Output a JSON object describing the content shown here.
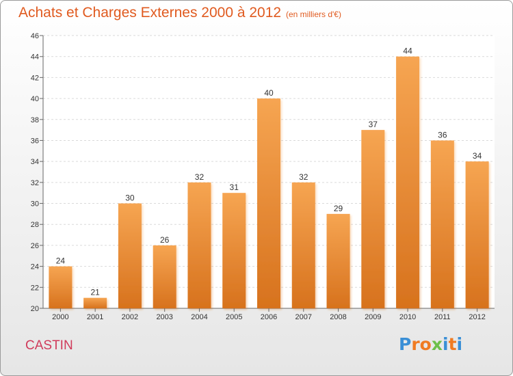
{
  "title": "Achats et Charges Externes 2000 à 2012",
  "unit": "(en milliers d'€)",
  "commune": "CASTIN",
  "logo": {
    "letters": [
      "P",
      "r",
      "o",
      "x",
      "i",
      "t",
      "i"
    ],
    "colors": [
      "#3a8fd6",
      "#f07b22",
      "#f07b22",
      "#6cc04a",
      "#3a8fd6",
      "#f07b22",
      "#3a8fd6"
    ]
  },
  "chart_data": {
    "type": "bar",
    "title": "Achats et Charges Externes 2000 à 2012",
    "categories": [
      "2000",
      "2001",
      "2002",
      "2003",
      "2004",
      "2005",
      "2006",
      "2007",
      "2008",
      "2009",
      "2010",
      "2011",
      "2012"
    ],
    "values": [
      24,
      21,
      30,
      26,
      32,
      31,
      40,
      32,
      29,
      37,
      44,
      36,
      34
    ],
    "ylim": [
      20,
      46
    ],
    "yticks": [
      20,
      22,
      24,
      26,
      28,
      30,
      32,
      34,
      36,
      38,
      40,
      42,
      44,
      46
    ],
    "grid": true,
    "bar_color_top": "#f6a552",
    "bar_color_bottom": "#d7721d"
  }
}
